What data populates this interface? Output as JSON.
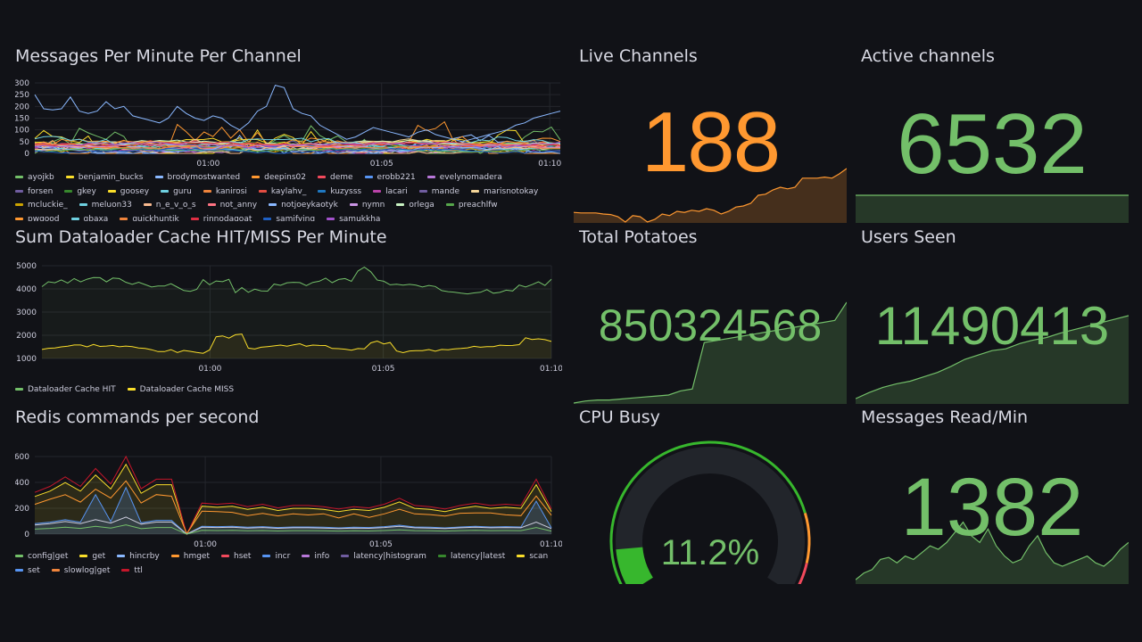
{
  "theme": {
    "background": "#111217",
    "green": "#73bf69",
    "orange": "#ff9830",
    "text": "#ccccdc"
  },
  "panels": {
    "messages": {
      "title": "Messages Per Minute Per Channel",
      "y_ticks": [
        "300",
        "250",
        "200",
        "150",
        "100",
        "50",
        "0"
      ],
      "x_ticks": [
        "01:00",
        "01:05",
        "01:10"
      ],
      "legend": [
        {
          "label": "ayojkb",
          "color": "#73bf69"
        },
        {
          "label": "benjamin_bucks",
          "color": "#fade2a"
        },
        {
          "label": "brodymostwanted",
          "color": "#8ab8ff"
        },
        {
          "label": "deepins02",
          "color": "#ff9830"
        },
        {
          "label": "deme",
          "color": "#f2495c"
        },
        {
          "label": "erobb221",
          "color": "#5794f2"
        },
        {
          "label": "evelynomadera",
          "color": "#b877d9"
        },
        {
          "label": "forsen",
          "color": "#705da0"
        },
        {
          "label": "gkey",
          "color": "#37872d"
        },
        {
          "label": "goosey",
          "color": "#fade2a"
        },
        {
          "label": "guru",
          "color": "#6ed0e0"
        },
        {
          "label": "kanirosi",
          "color": "#ef843c"
        },
        {
          "label": "kaylahv_",
          "color": "#e24d42"
        },
        {
          "label": "kuzysss",
          "color": "#1f78c1"
        },
        {
          "label": "lacari",
          "color": "#ba43a9"
        },
        {
          "label": "mande",
          "color": "#705da0"
        },
        {
          "label": "marisnotokay",
          "color": "#f4d598"
        },
        {
          "label": "mcluckie_",
          "color": "#cca300"
        },
        {
          "label": "meluon33",
          "color": "#6ed0e0"
        },
        {
          "label": "n_e_v_o_s",
          "color": "#f9ba8f"
        },
        {
          "label": "not_anny",
          "color": "#ff7383"
        },
        {
          "label": "notjoeykaotyk",
          "color": "#8ab8ff"
        },
        {
          "label": "nymn",
          "color": "#ca95e5"
        },
        {
          "label": "orlega",
          "color": "#c8f2c2"
        },
        {
          "label": "preachlfw",
          "color": "#56a64b"
        },
        {
          "label": "pwgood",
          "color": "#ff9830"
        },
        {
          "label": "qbaxa",
          "color": "#6ed0e0"
        },
        {
          "label": "quickhuntik",
          "color": "#ef843c"
        },
        {
          "label": "rinnodagoat",
          "color": "#e02f44"
        },
        {
          "label": "samifying",
          "color": "#1f60c4"
        },
        {
          "label": "samukkha",
          "color": "#a352cc"
        }
      ]
    },
    "cache": {
      "title": "Sum Dataloader Cache HIT/MISS Per Minute",
      "y_ticks": [
        "5000",
        "4000",
        "3000",
        "2000",
        "1000"
      ],
      "x_ticks": [
        "01:00",
        "01:05",
        "01:10"
      ],
      "legend": [
        {
          "label": "Dataloader Cache HIT",
          "color": "#73bf69"
        },
        {
          "label": "Dataloader Cache MISS",
          "color": "#fade2a"
        }
      ]
    },
    "redis": {
      "title": "Redis commands per second",
      "y_ticks": [
        "600",
        "400",
        "200",
        "0"
      ],
      "x_ticks": [
        "01:00",
        "01:05",
        "01:10"
      ],
      "legend": [
        {
          "label": "config|get",
          "color": "#73bf69"
        },
        {
          "label": "get",
          "color": "#fade2a"
        },
        {
          "label": "hincrby",
          "color": "#8ab8ff"
        },
        {
          "label": "hmget",
          "color": "#ff9830"
        },
        {
          "label": "hset",
          "color": "#f2495c"
        },
        {
          "label": "incr",
          "color": "#5794f2"
        },
        {
          "label": "info",
          "color": "#b877d9"
        },
        {
          "label": "latency|histogram",
          "color": "#705da0"
        },
        {
          "label": "latency|latest",
          "color": "#37872d"
        },
        {
          "label": "scan",
          "color": "#fade2a"
        },
        {
          "label": "set",
          "color": "#5794f2"
        },
        {
          "label": "slowlog|get",
          "color": "#ef843c"
        },
        {
          "label": "ttl",
          "color": "#c4162a"
        }
      ]
    },
    "live_channels": {
      "title": "Live Channels",
      "value": "188",
      "color": "#ff9830",
      "spark": [
        0.18,
        0.17,
        0.17,
        0.17,
        0.15,
        0.14,
        0.1,
        0.0,
        0.12,
        0.1,
        0.0,
        0.05,
        0.15,
        0.12,
        0.2,
        0.18,
        0.22,
        0.2,
        0.25,
        0.22,
        0.15,
        0.2,
        0.28,
        0.3,
        0.35,
        0.5,
        0.52,
        0.6,
        0.65,
        0.62,
        0.65,
        0.82,
        0.82,
        0.82,
        0.84,
        0.82,
        0.9,
        1.0
      ]
    },
    "active_channels": {
      "title": "Active channels",
      "value": "6532",
      "color": "#73bf69",
      "spark": [
        1,
        1,
        1,
        1,
        1,
        1,
        1,
        1,
        1,
        1,
        1,
        1,
        1,
        1,
        1,
        1,
        1,
        1,
        1,
        1
      ]
    },
    "total_potatoes": {
      "title": "Total Potatoes",
      "value": "850324568",
      "color": "#73bf69",
      "spark": [
        0,
        0.02,
        0.03,
        0.03,
        0.04,
        0.05,
        0.06,
        0.07,
        0.08,
        0.12,
        0.14,
        0.6,
        0.62,
        0.64,
        0.66,
        0.68,
        0.7,
        0.72,
        0.74,
        0.76,
        0.78,
        0.8,
        0.82,
        1.0
      ]
    },
    "users_seen": {
      "title": "Users Seen",
      "value": "11490413",
      "color": "#73bf69",
      "spark": [
        0.05,
        0.12,
        0.18,
        0.22,
        0.25,
        0.3,
        0.35,
        0.42,
        0.5,
        0.55,
        0.6,
        0.62,
        0.68,
        0.72,
        0.75,
        0.8,
        0.84,
        0.88,
        0.92,
        0.96,
        1.0
      ]
    },
    "cpu_busy": {
      "title": "CPU Busy",
      "value": "11.2%",
      "percent": 11.2,
      "color": "#37b72d"
    },
    "messages_read": {
      "title": "Messages Read/Min",
      "value": "1382",
      "color": "#73bf69",
      "spark": [
        0.05,
        0.15,
        0.2,
        0.35,
        0.38,
        0.3,
        0.4,
        0.35,
        0.45,
        0.55,
        0.5,
        0.6,
        0.75,
        0.9,
        0.7,
        0.6,
        0.8,
        0.55,
        0.4,
        0.3,
        0.35,
        0.55,
        0.7,
        0.45,
        0.3,
        0.25,
        0.3,
        0.35,
        0.4,
        0.3,
        0.25,
        0.35,
        0.5,
        0.6
      ]
    }
  }
}
